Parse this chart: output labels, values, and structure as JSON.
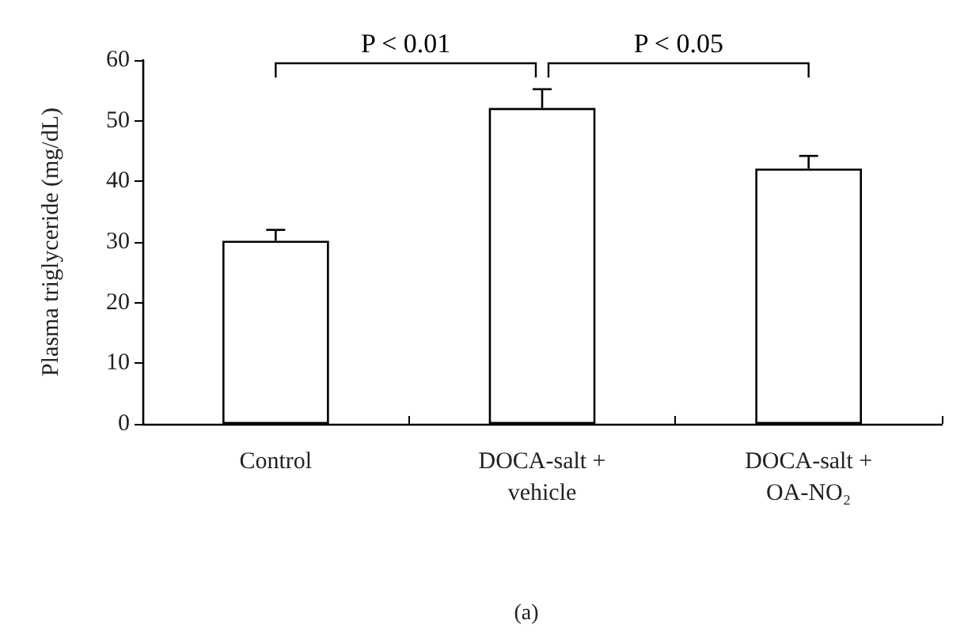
{
  "chart_data": {
    "type": "bar",
    "ylabel": "Plasma triglyceride (mg/dL)",
    "categories": [
      "Control",
      "DOCA-salt +\nvehicle",
      "DOCA-salt +\nOA-NO₂"
    ],
    "values": [
      30.2,
      52.1,
      42.1
    ],
    "errors": [
      [
        30.2,
        32.0
      ],
      [
        52.1,
        55.2
      ],
      [
        42.1,
        44.2
      ]
    ],
    "color": "#ffffff",
    "ylim": [
      0,
      60
    ],
    "yticks": [
      0,
      10,
      20,
      30,
      40,
      50,
      60
    ],
    "grid": false,
    "annotations": [
      "P < 0.01",
      "P < 0.05",
      "(a)"
    ]
  }
}
